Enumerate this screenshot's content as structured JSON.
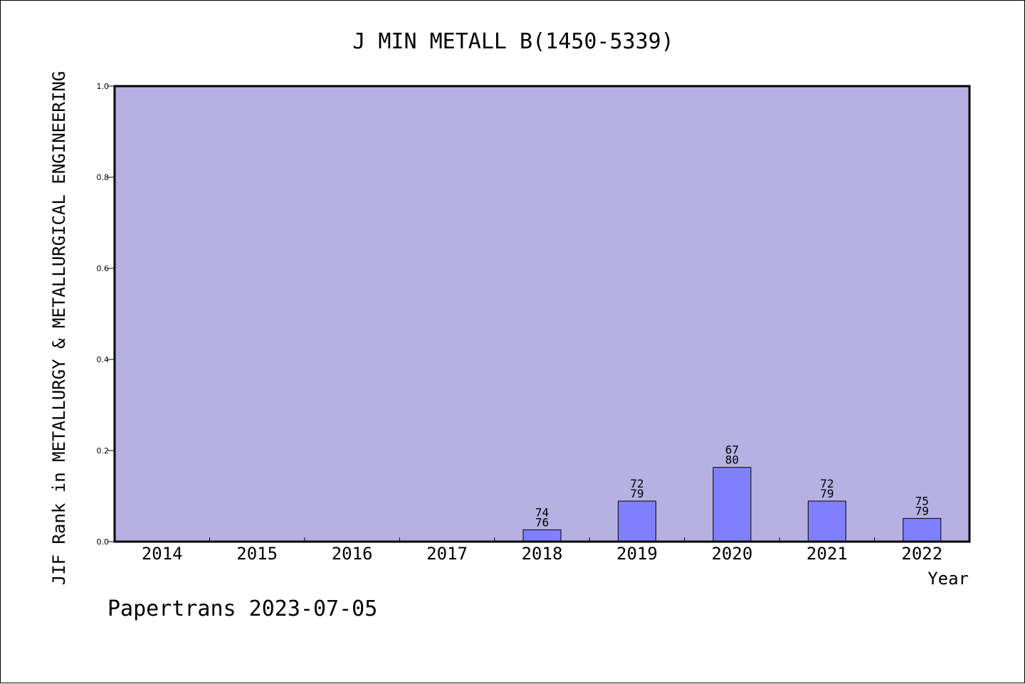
{
  "chart_data": {
    "type": "bar",
    "title": "J MIN METALL B(1450-5339)",
    "xlabel": "Year",
    "ylabel": "JIF Rank in METALLURGY & METALLURGICAL ENGINEERING",
    "ylim": [
      0,
      1.0
    ],
    "yticks": [
      "0.0",
      "0.2",
      "0.4",
      "0.6",
      "0.8",
      "1.0"
    ],
    "categories": [
      "2014",
      "2015",
      "2016",
      "2017",
      "2018",
      "2019",
      "2020",
      "2021",
      "2022"
    ],
    "values": [
      null,
      null,
      null,
      null,
      0.026,
      0.089,
      0.163,
      0.089,
      0.051
    ],
    "labels": [
      null,
      null,
      null,
      null,
      {
        "top": "74",
        "bottom": "76"
      },
      {
        "top": "72",
        "bottom": "79"
      },
      {
        "top": "67",
        "bottom": "80"
      },
      {
        "top": "72",
        "bottom": "79"
      },
      {
        "top": "75",
        "bottom": "79"
      }
    ],
    "grid": false
  },
  "footer": "Papertrans 2023-07-05",
  "colors": {
    "plot_background": "#b6b0e3",
    "bar": "#8080ff",
    "axis": "#000000"
  }
}
